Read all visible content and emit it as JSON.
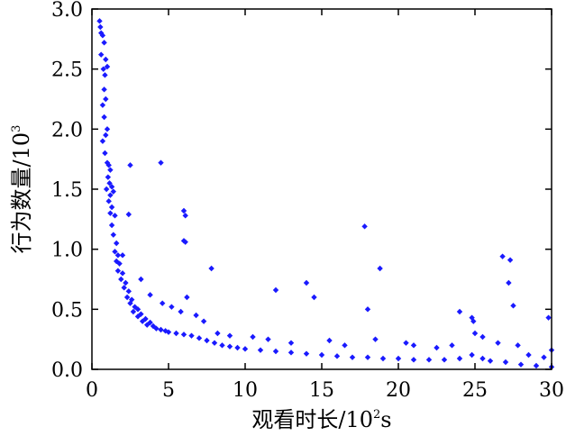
{
  "chart_data": {
    "type": "scatter",
    "xlabel": {
      "main": "观看时长/10",
      "sup": "2",
      "tail": "s"
    },
    "ylabel": {
      "main": "行为数量/10",
      "sup": "3"
    },
    "xlim": [
      0,
      30
    ],
    "ylim": [
      0,
      3.0
    ],
    "x_ticks": [
      0,
      5,
      10,
      15,
      20,
      25,
      30
    ],
    "x_tick_labels": [
      "0",
      "5",
      "10",
      "15",
      "20",
      "25",
      "30"
    ],
    "y_ticks": [
      0.0,
      0.5,
      1.0,
      1.5,
      2.0,
      2.5,
      3.0
    ],
    "y_tick_labels": [
      "0.0",
      "0.5",
      "1.0",
      "1.5",
      "2.0",
      "2.5",
      "3.0"
    ],
    "grid": false,
    "marker": "diamond",
    "color": "#1a1aff",
    "points": [
      [
        0.5,
        2.9
      ],
      [
        0.55,
        2.85
      ],
      [
        0.6,
        2.8
      ],
      [
        0.7,
        2.78
      ],
      [
        0.8,
        2.72
      ],
      [
        0.6,
        2.62
      ],
      [
        0.9,
        2.58
      ],
      [
        1.0,
        2.52
      ],
      [
        0.75,
        2.5
      ],
      [
        0.85,
        2.45
      ],
      [
        0.8,
        2.33
      ],
      [
        0.9,
        2.25
      ],
      [
        0.7,
        2.2
      ],
      [
        0.8,
        2.1
      ],
      [
        1.0,
        2.0
      ],
      [
        0.9,
        1.95
      ],
      [
        0.7,
        1.9
      ],
      [
        0.85,
        1.8
      ],
      [
        1.0,
        1.72
      ],
      [
        1.1,
        1.7
      ],
      [
        1.2,
        1.66
      ],
      [
        1.05,
        1.6
      ],
      [
        1.15,
        1.55
      ],
      [
        0.95,
        1.5
      ],
      [
        1.2,
        1.45
      ],
      [
        1.3,
        1.52
      ],
      [
        1.4,
        1.48
      ],
      [
        1.1,
        1.4
      ],
      [
        1.3,
        1.35
      ],
      [
        1.2,
        1.3
      ],
      [
        1.5,
        1.28
      ],
      [
        1.3,
        1.2
      ],
      [
        1.4,
        1.12
      ],
      [
        1.6,
        1.05
      ],
      [
        1.5,
        0.98
      ],
      [
        1.7,
        0.95
      ],
      [
        1.6,
        0.9
      ],
      [
        1.8,
        0.88
      ],
      [
        1.7,
        0.82
      ],
      [
        2.0,
        0.8
      ],
      [
        1.9,
        0.75
      ],
      [
        2.2,
        0.72
      ],
      [
        2.1,
        0.68
      ],
      [
        2.4,
        0.65
      ],
      [
        2.3,
        0.6
      ],
      [
        2.6,
        0.58
      ],
      [
        2.5,
        0.55
      ],
      [
        2.8,
        0.52
      ],
      [
        3.0,
        0.5
      ],
      [
        2.7,
        0.48
      ],
      [
        3.2,
        0.46
      ],
      [
        3.0,
        0.44
      ],
      [
        3.5,
        0.42
      ],
      [
        3.3,
        0.4
      ],
      [
        3.8,
        0.39
      ],
      [
        3.6,
        0.37
      ],
      [
        4.0,
        0.36
      ],
      [
        4.2,
        0.34
      ],
      [
        4.5,
        0.33
      ],
      [
        4.8,
        0.32
      ],
      [
        5.0,
        0.31
      ],
      [
        5.5,
        0.3
      ],
      [
        6.0,
        0.29
      ],
      [
        6.5,
        0.28
      ],
      [
        7.0,
        0.26
      ],
      [
        7.5,
        0.24
      ],
      [
        8.0,
        0.22
      ],
      [
        8.5,
        0.2
      ],
      [
        9.0,
        0.19
      ],
      [
        9.5,
        0.18
      ],
      [
        10.0,
        0.17
      ],
      [
        11.0,
        0.16
      ],
      [
        12.0,
        0.15
      ],
      [
        13.0,
        0.14
      ],
      [
        14.0,
        0.13
      ],
      [
        15.0,
        0.12
      ],
      [
        16.0,
        0.11
      ],
      [
        17.0,
        0.1
      ],
      [
        18.0,
        0.1
      ],
      [
        19.0,
        0.09
      ],
      [
        20.0,
        0.09
      ],
      [
        21.0,
        0.08
      ],
      [
        22.0,
        0.08
      ],
      [
        23.0,
        0.08
      ],
      [
        24.0,
        0.09
      ],
      [
        24.8,
        0.12
      ],
      [
        25.5,
        0.09
      ],
      [
        26.0,
        0.07
      ],
      [
        27.0,
        0.06
      ],
      [
        28.0,
        0.04
      ],
      [
        29.0,
        0.03
      ],
      [
        30.0,
        0.02
      ],
      [
        2.5,
        1.7
      ],
      [
        2.4,
        1.29
      ],
      [
        4.5,
        1.72
      ],
      [
        6.0,
        1.32
      ],
      [
        6.1,
        1.28
      ],
      [
        6.0,
        1.07
      ],
      [
        6.1,
        1.06
      ],
      [
        7.8,
        0.84
      ],
      [
        14.0,
        0.72
      ],
      [
        12.0,
        0.66
      ],
      [
        14.5,
        0.6
      ],
      [
        17.8,
        1.19
      ],
      [
        18.8,
        0.84
      ],
      [
        18.0,
        0.5
      ],
      [
        24.0,
        0.48
      ],
      [
        24.8,
        0.43
      ],
      [
        24.9,
        0.4
      ],
      [
        26.8,
        0.94
      ],
      [
        27.3,
        0.91
      ],
      [
        27.5,
        0.53
      ],
      [
        27.2,
        0.72
      ],
      [
        29.8,
        0.43
      ],
      [
        30.0,
        0.16
      ],
      [
        2.0,
        0.95
      ],
      [
        3.2,
        0.75
      ],
      [
        3.8,
        0.62
      ],
      [
        4.6,
        0.55
      ],
      [
        5.2,
        0.52
      ],
      [
        5.8,
        0.48
      ],
      [
        6.2,
        0.6
      ],
      [
        6.8,
        0.45
      ],
      [
        7.3,
        0.4
      ],
      [
        8.2,
        0.3
      ],
      [
        9.0,
        0.28
      ],
      [
        10.5,
        0.27
      ],
      [
        11.5,
        0.25
      ],
      [
        13.0,
        0.22
      ],
      [
        15.5,
        0.24
      ],
      [
        16.5,
        0.2
      ],
      [
        18.5,
        0.25
      ],
      [
        20.5,
        0.22
      ],
      [
        21.0,
        0.2
      ],
      [
        22.5,
        0.18
      ],
      [
        23.5,
        0.2
      ],
      [
        25.0,
        0.3
      ],
      [
        25.5,
        0.27
      ],
      [
        26.5,
        0.22
      ],
      [
        27.8,
        0.2
      ],
      [
        28.5,
        0.12
      ],
      [
        29.5,
        0.1
      ]
    ]
  }
}
